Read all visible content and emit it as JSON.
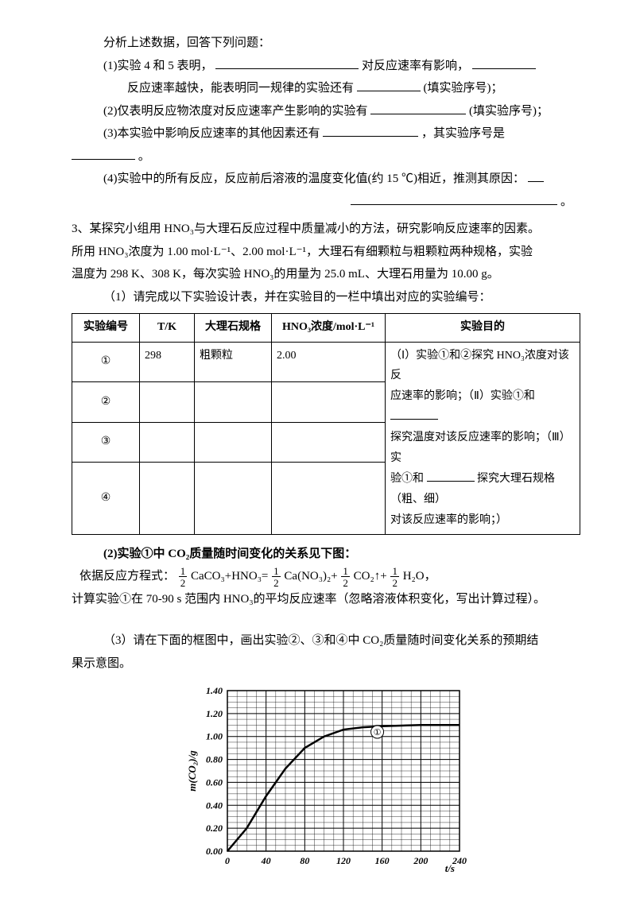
{
  "questions": {
    "analysis_intro": "分析上述数据，回答下列问题：",
    "q1a": "(1)实验 4 和 5 表明，",
    "q1b": " 对反应速率有影响，",
    "q1c": "反应速率越快，能表明同一规律的实验还有",
    "q1d": "(填实验序号)；",
    "q2a": "(2)仅表明反应物浓度对反应速率产生影响的实验有",
    "q2b": "(填实验序号)；",
    "q3a": "(3)本实验中影响反应速率的其他因素还有",
    "q3b": "，其实验序号是",
    "q3c": "。",
    "q4a": "(4)实验中的所有反应，反应前后溶液的温度变化值(约 15 ℃)相近，推测其原因：",
    "q4b": "。"
  },
  "q3_intro": {
    "line1": "3、某探究小组用 HNO₃与大理石反应过程中质量减小的方法，研究影响反应速率的因素。",
    "line2": "所用 HNO₃浓度为 1.00 mol·L⁻¹、2.00 mol·L⁻¹，大理石有细颗粒与粗颗粒两种规格，实验",
    "line3": "温度为 298 K、308 K，每次实验 HNO₃的用量为 25.0 mL、大理石用量为 10.00 g。",
    "sub1": "（1）请完成以下实验设计表，并在实验目的一栏中填出对应的实验编号："
  },
  "table": {
    "headers": [
      "实验编号",
      "T/K",
      "大理石规格",
      "HNO₃浓度/mol·L⁻¹",
      "实验目的"
    ],
    "row1": {
      "id": "①",
      "t": "298",
      "spec": "粗颗粒",
      "conc": "2.00"
    },
    "row2": {
      "id": "②"
    },
    "row3": {
      "id": "③"
    },
    "row4": {
      "id": "④"
    },
    "purpose_a": "（Ⅰ）实验①和②探究 HNO₃浓度对该反",
    "purpose_b": "应速率的影响；（Ⅱ）实验①和",
    "purpose_c": "探究温度对该反应速率的影响；（Ⅲ）实",
    "purpose_d": "验①和",
    "purpose_e": "探究大理石规格（粗、细）",
    "purpose_f": "对该反应速率的影响；）"
  },
  "q3_sub2": {
    "line1": "(2)实验①中 CO₂质量随时间变化的关系见下图：",
    "eqn_pre": "依据反应方程式：",
    "eqn_a": "CaCO₃+HNO₃=",
    "eqn_b": "Ca(NO₃)₂+",
    "eqn_c": "CO₂↑+",
    "eqn_d": "H₂O，",
    "line3": "计算实验①在 70-90 s 范围内 HNO₃的平均反应速率（忽略溶液体积变化，写出计算过程）。"
  },
  "q3_sub3": {
    "line1": "（3）请在下面的框图中，画出实验②、③和④中 CO₂质量随时间变化关系的预期结",
    "line2": "果示意图。"
  },
  "chart": {
    "type": "line",
    "ylabel": "m(CO₂)/g",
    "xlabel": "t/s",
    "xlim": [
      0,
      240
    ],
    "ylim": [
      0.0,
      1.4
    ],
    "xticks": [
      0,
      40,
      80,
      120,
      160,
      200,
      240
    ],
    "yticks": [
      0.0,
      0.2,
      0.4,
      0.6,
      0.8,
      1.0,
      1.2,
      1.4
    ],
    "ytick_labels": [
      "0.00",
      "0.20",
      "0.40",
      "0.60",
      "0.80",
      "1.00",
      "1.20",
      "1.40"
    ],
    "curve_points": [
      [
        0,
        0.0
      ],
      [
        20,
        0.2
      ],
      [
        40,
        0.48
      ],
      [
        60,
        0.72
      ],
      [
        80,
        0.9
      ],
      [
        100,
        1.0
      ],
      [
        120,
        1.06
      ],
      [
        140,
        1.08
      ],
      [
        160,
        1.09
      ],
      [
        200,
        1.1
      ],
      [
        240,
        1.1
      ]
    ],
    "marker_label": "①",
    "marker_pos": [
      155,
      1.04
    ],
    "grid_color": "#000000",
    "curve_color": "#000000",
    "background_color": "#ffffff",
    "grid_minor_step_x": 10,
    "grid_minor_step_y": 0.05,
    "axis_fontsize": 12,
    "curve_width": 2.5
  }
}
